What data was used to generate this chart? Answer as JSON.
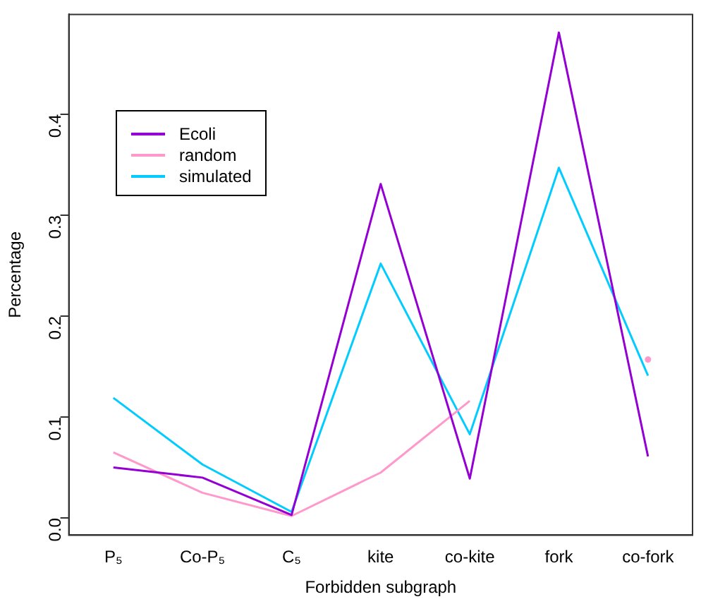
{
  "chart_data": {
    "type": "line",
    "xlabel": "Forbidden subgraph",
    "ylabel": "Percentage",
    "categories": [
      "P₅",
      "Co-P₅",
      "C₅",
      "kite",
      "co-kite",
      "fork",
      "co-fork"
    ],
    "series": [
      {
        "name": "Ecoli",
        "color": "#9400d3",
        "values": [
          0.05,
          0.04,
          0.003,
          0.331,
          0.039,
          0.481,
          0.061
        ]
      },
      {
        "name": "random",
        "color": "#ff99cc",
        "values": [
          0.065,
          0.025,
          0.002,
          0.045,
          0.116,
          null,
          0.157
        ]
      },
      {
        "name": "simulated",
        "color": "#00ccff",
        "values": [
          0.119,
          0.053,
          0.006,
          0.252,
          0.083,
          0.347,
          0.141
        ]
      }
    ],
    "ylim": [
      -0.017,
      0.499
    ],
    "yticks": [
      {
        "value": 0,
        "label": "0.0"
      },
      0.1,
      0.2,
      0.3,
      0.4
    ],
    "grid": false,
    "legend": "top left",
    "marker": "none",
    "line_style": "solid"
  }
}
